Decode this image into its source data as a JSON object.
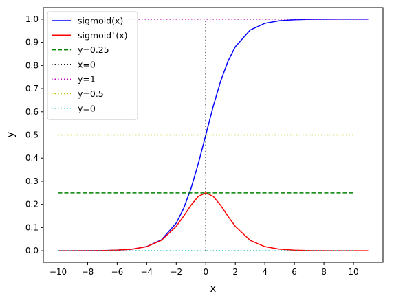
{
  "chart_data": {
    "type": "line",
    "xlabel": "x",
    "ylabel": "y",
    "xlim": [
      -11,
      12
    ],
    "ylim": [
      -0.05,
      1.05
    ],
    "xticks": [
      -10,
      -8,
      -6,
      -4,
      -2,
      0,
      2,
      4,
      6,
      8,
      10
    ],
    "yticks": [
      0.0,
      0.1,
      0.2,
      0.3,
      0.4,
      0.5,
      0.6,
      0.7,
      0.8,
      0.9,
      1.0
    ],
    "xtick_labels": [
      "−10",
      "−8",
      "−6",
      "−4",
      "−2",
      "0",
      "2",
      "4",
      "6",
      "8",
      "10"
    ],
    "ytick_labels": [
      "0.0",
      "0.1",
      "0.2",
      "0.3",
      "0.4",
      "0.5",
      "0.6",
      "0.7",
      "0.8",
      "0.9",
      "1.0"
    ],
    "grid": false,
    "legend_position": "top-left",
    "series": [
      {
        "name": "sigmoid(x)",
        "color": "#0000ff",
        "style": "solid",
        "x": [
          -10,
          -9,
          -8,
          -7,
          -6,
          -5,
          -4,
          -3,
          -2,
          -1.5,
          -1,
          -0.5,
          0,
          0.5,
          1,
          1.5,
          2,
          3,
          4,
          5,
          6,
          7,
          8,
          9,
          10,
          11
        ],
        "y": [
          0.0,
          0.0001,
          0.0003,
          0.0009,
          0.0025,
          0.0067,
          0.018,
          0.0474,
          0.1192,
          0.1824,
          0.2689,
          0.3775,
          0.5,
          0.6225,
          0.7311,
          0.8176,
          0.8808,
          0.9526,
          0.982,
          0.9933,
          0.9975,
          0.9991,
          0.9997,
          0.9999,
          1.0,
          1.0
        ]
      },
      {
        "name": "sigmoid`(x)",
        "color": "#ff0000",
        "style": "solid",
        "x": [
          -10,
          -9,
          -8,
          -7,
          -6,
          -5,
          -4,
          -3,
          -2,
          -1.5,
          -1,
          -0.5,
          0,
          0.5,
          1,
          1.5,
          2,
          3,
          4,
          5,
          6,
          7,
          8,
          9,
          10,
          11
        ],
        "y": [
          0.0,
          0.0001,
          0.0003,
          0.0009,
          0.0025,
          0.0066,
          0.0177,
          0.0452,
          0.105,
          0.1491,
          0.1966,
          0.235,
          0.25,
          0.235,
          0.1966,
          0.1491,
          0.105,
          0.0452,
          0.0177,
          0.0066,
          0.0025,
          0.0009,
          0.0003,
          0.0001,
          0.0,
          0.0
        ]
      },
      {
        "name": "y=0.25",
        "color": "#008000",
        "style": "dashed",
        "x": [
          -10,
          10
        ],
        "y": [
          0.25,
          0.25
        ]
      },
      {
        "name": "x=0",
        "color": "#000000",
        "style": "dotted",
        "x": [
          0,
          0
        ],
        "y": [
          0,
          1
        ]
      },
      {
        "name": "y=1",
        "color": "#bf00bf",
        "style": "dotted",
        "x": [
          -10,
          11
        ],
        "y": [
          1,
          1
        ]
      },
      {
        "name": "y=0.5",
        "color": "#bfbf00",
        "style": "dotted",
        "x": [
          -10,
          10
        ],
        "y": [
          0.5,
          0.5
        ]
      },
      {
        "name": "y=0",
        "color": "#00bfbf",
        "style": "dotted",
        "x": [
          -10,
          10
        ],
        "y": [
          0,
          0
        ]
      }
    ]
  }
}
